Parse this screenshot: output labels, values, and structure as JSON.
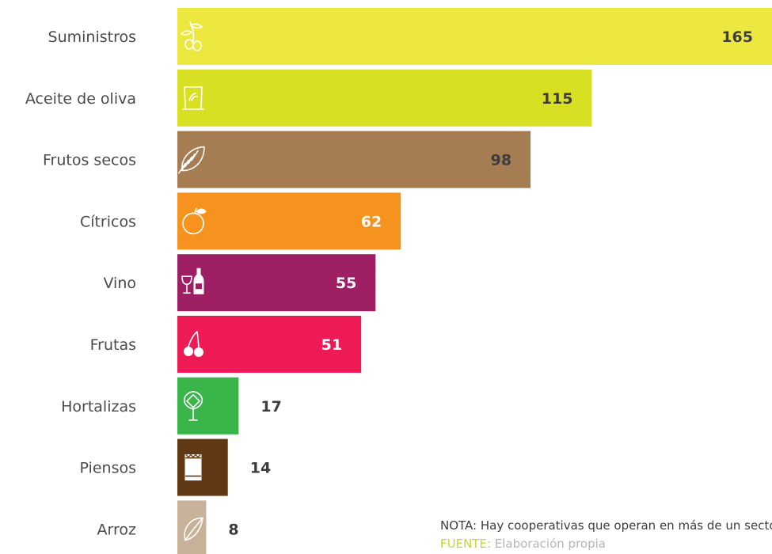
{
  "chart_data": {
    "type": "bar",
    "orientation": "horizontal",
    "categories": [
      "Suministros",
      "Aceite de oliva",
      "Frutos secos",
      "Cítricos",
      "Vino",
      "Frutas",
      "Hortalizas",
      "Piensos",
      "Arroz"
    ],
    "values": [
      165,
      115,
      98,
      62,
      55,
      51,
      17,
      14,
      8
    ],
    "data_labels": [
      "165",
      "115",
      "98",
      "62",
      "55",
      "51",
      "17",
      "14",
      "8"
    ],
    "colors": [
      "#ede83f",
      "#d8e023",
      "#a67c52",
      "#f6931f",
      "#9e1f63",
      "#ee1a56",
      "#39b54a",
      "#603813",
      "#c7b299"
    ],
    "icons": [
      "olive-branch-icon",
      "oil-sack-icon",
      "almond-icon",
      "orange-icon",
      "wine-bottle-glass-icon",
      "cherries-icon",
      "artichoke-icon",
      "feed-bag-icon",
      "rice-grain-icon"
    ],
    "label_inside": [
      true,
      true,
      true,
      true,
      true,
      true,
      false,
      false,
      false
    ],
    "xlim": [
      0,
      165
    ],
    "grid": false,
    "legend": "none",
    "title": "",
    "xlabel": "",
    "ylabel": ""
  },
  "footer": {
    "note": "NOTA: Hay cooperativas que operan en más de un sector",
    "source_key": "FUENTE:",
    "source_value": "Elaboración propia"
  }
}
